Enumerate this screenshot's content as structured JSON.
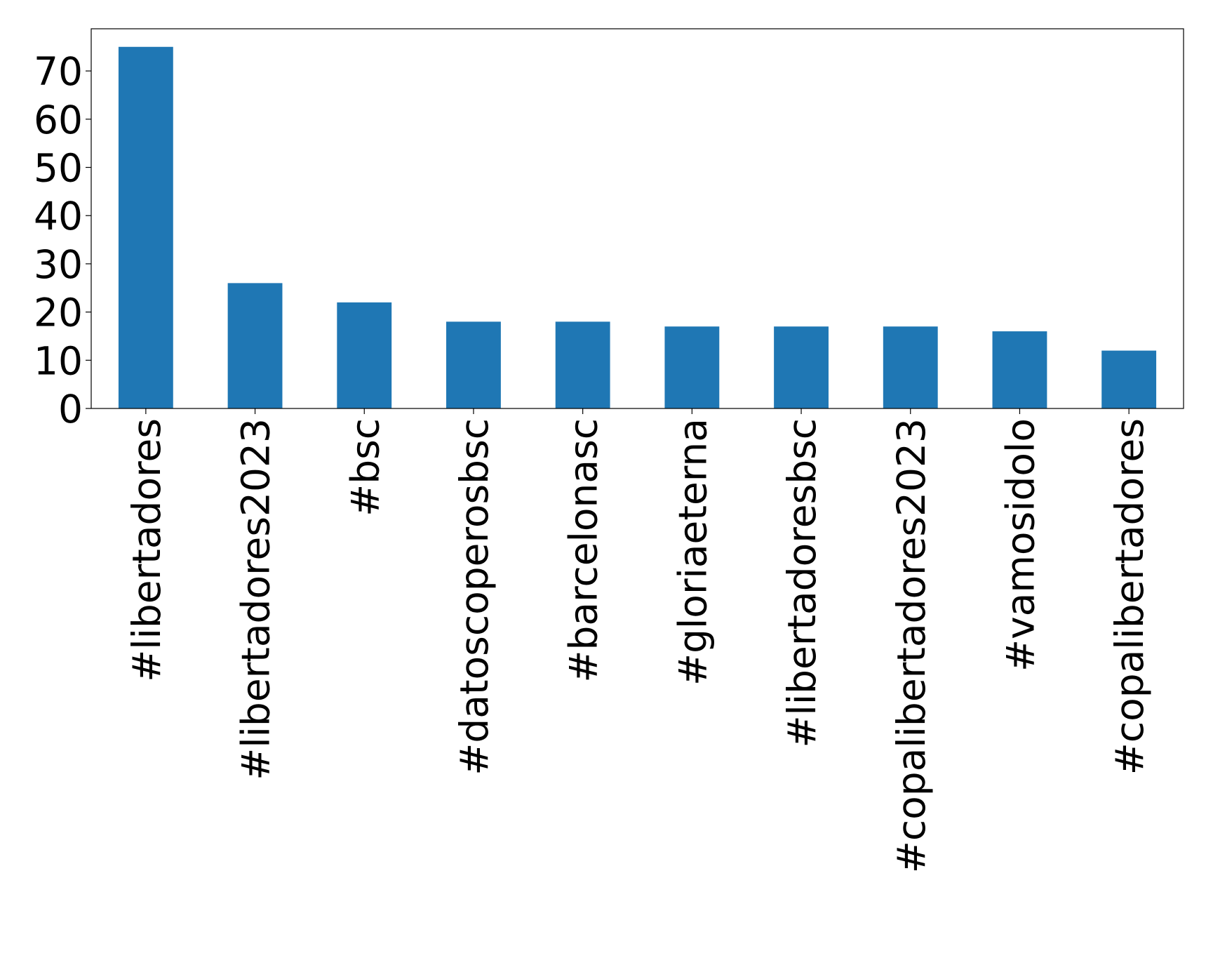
{
  "chart_data": {
    "type": "bar",
    "categories": [
      "#libertadores",
      "#libertadores2023",
      "#bsc",
      "#datoscoperosbsc",
      "#barcelonasc",
      "#gloriaeterna",
      "#libertadoresbsc",
      "#copalibertadores2023",
      "#vamosidolo",
      "#copalibertadores"
    ],
    "values": [
      75,
      26,
      22,
      18,
      18,
      17,
      17,
      17,
      16,
      12
    ],
    "color": "#1f77b4",
    "ylim": [
      0,
      78.75
    ],
    "yticks": [
      0,
      10,
      20,
      30,
      40,
      50,
      60,
      70
    ],
    "grid": false
  }
}
